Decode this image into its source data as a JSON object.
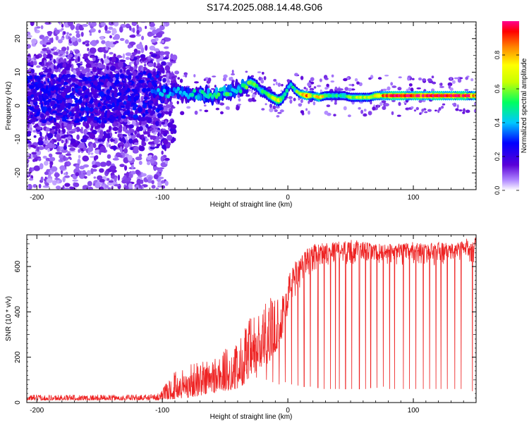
{
  "figure": {
    "title": "S174.2025.088.14.48.G06"
  },
  "chart_data": [
    {
      "type": "heatmap",
      "title": "S174.2025.088.14.48.G06",
      "xlabel": "Height of straight line (km)",
      "ylabel": "Frequency (Hz)",
      "xlim": [
        -208,
        150
      ],
      "ylim": [
        -25,
        25
      ],
      "x_ticks": [
        -200,
        -100,
        0,
        100
      ],
      "x_tick_labels": [
        "-200",
        "-100",
        "0",
        "100"
      ],
      "y_ticks": [
        -20,
        -10,
        0,
        10,
        20
      ],
      "y_tick_labels": [
        "-20",
        "-10",
        "0",
        "10",
        "20"
      ],
      "colorbar": {
        "label": "Normalized spectral amplitude",
        "range": [
          0,
          1
        ],
        "ticks": [
          0,
          0.2,
          0.4,
          0.6,
          0.8
        ],
        "tick_labels": [
          "0.0",
          "0.2",
          "0.4",
          "0.6",
          "0.8"
        ],
        "colormap": "rainbow"
      },
      "ridge": {
        "x": [
          -200,
          -150,
          -110,
          -100,
          -90,
          -80,
          -70,
          -60,
          -50,
          -40,
          -35,
          -30,
          -25,
          -22,
          -18,
          -15,
          -10,
          -8,
          -5,
          -3,
          0,
          2,
          5,
          8,
          10,
          15,
          20,
          25,
          30,
          35,
          40,
          45,
          50,
          55,
          60,
          65,
          70,
          75,
          80,
          90,
          100,
          110,
          120,
          130,
          140,
          150
        ],
        "y": [
          2,
          2,
          3,
          4,
          4,
          3.5,
          3.5,
          3,
          4,
          5,
          6,
          7,
          6,
          4.5,
          4,
          3,
          2,
          1.5,
          2,
          3,
          5,
          6.5,
          5,
          4,
          3.5,
          3,
          3,
          2.5,
          3,
          3,
          3,
          3,
          2.5,
          2.5,
          2.5,
          2.5,
          3,
          3,
          3,
          3,
          3,
          3,
          3,
          3,
          3,
          3
        ],
        "amplitude": [
          0.25,
          0.3,
          0.35,
          0.4,
          0.4,
          0.4,
          0.45,
          0.5,
          0.5,
          0.45,
          0.45,
          0.6,
          0.5,
          0.45,
          0.5,
          0.55,
          0.6,
          0.7,
          0.6,
          0.5,
          0.45,
          0.45,
          0.5,
          0.55,
          0.75,
          0.95,
          0.6,
          0.85,
          0.6,
          0.5,
          0.5,
          0.5,
          0.55,
          0.6,
          0.65,
          0.6,
          0.75,
          0.8,
          0.95,
          0.95,
          0.95,
          0.95,
          0.95,
          0.95,
          0.95,
          0.8
        ]
      }
    },
    {
      "type": "line",
      "xlabel": "Height of straight line (km)",
      "ylabel": "SNR (10 * v/v)",
      "xlim": [
        -208,
        150
      ],
      "ylim": [
        0,
        740
      ],
      "x_ticks": [
        -200,
        -100,
        0,
        100
      ],
      "x_tick_labels": [
        "-200",
        "-100",
        "0",
        "100"
      ],
      "y_ticks": [
        0,
        200,
        400,
        600
      ],
      "y_tick_labels": [
        "0",
        "200",
        "400",
        "600"
      ],
      "color": "#ee2222",
      "envelope": {
        "x": [
          -208,
          -120,
          -105,
          -100,
          -90,
          -80,
          -70,
          -60,
          -50,
          -40,
          -35,
          -30,
          -25,
          -20,
          -15,
          -10,
          -5,
          0,
          5,
          10,
          15,
          20,
          25,
          30,
          40,
          50,
          60,
          70,
          80,
          90,
          100,
          110,
          120,
          130,
          140,
          150
        ],
        "low": [
          10,
          10,
          10,
          12,
          15,
          20,
          30,
          40,
          50,
          60,
          80,
          100,
          130,
          150,
          180,
          220,
          280,
          380,
          450,
          500,
          540,
          570,
          590,
          600,
          610,
          600,
          610,
          600,
          610,
          600,
          600,
          610,
          600,
          610,
          620,
          610
        ],
        "high": [
          35,
          35,
          40,
          60,
          140,
          170,
          190,
          210,
          240,
          260,
          340,
          380,
          400,
          430,
          460,
          480,
          500,
          560,
          620,
          650,
          680,
          700,
          700,
          710,
          710,
          720,
          710,
          700,
          700,
          700,
          710,
          700,
          710,
          700,
          720,
          730
        ]
      },
      "dropouts": {
        "x": [
          -25,
          -17,
          -12,
          -7,
          -2,
          3,
          8,
          13,
          18,
          24,
          29,
          34,
          38,
          41,
          46,
          51,
          57,
          62,
          66,
          71,
          76,
          81,
          85,
          92,
          97,
          102,
          108,
          113,
          118,
          122,
          127,
          133,
          138,
          147
        ],
        "y": [
          110,
          100,
          90,
          80,
          90,
          80,
          75,
          70,
          70,
          65,
          60,
          60,
          60,
          60,
          60,
          60,
          60,
          60,
          65,
          65,
          70,
          60,
          60,
          60,
          60,
          60,
          60,
          60,
          60,
          60,
          60,
          60,
          60,
          50
        ]
      }
    }
  ]
}
